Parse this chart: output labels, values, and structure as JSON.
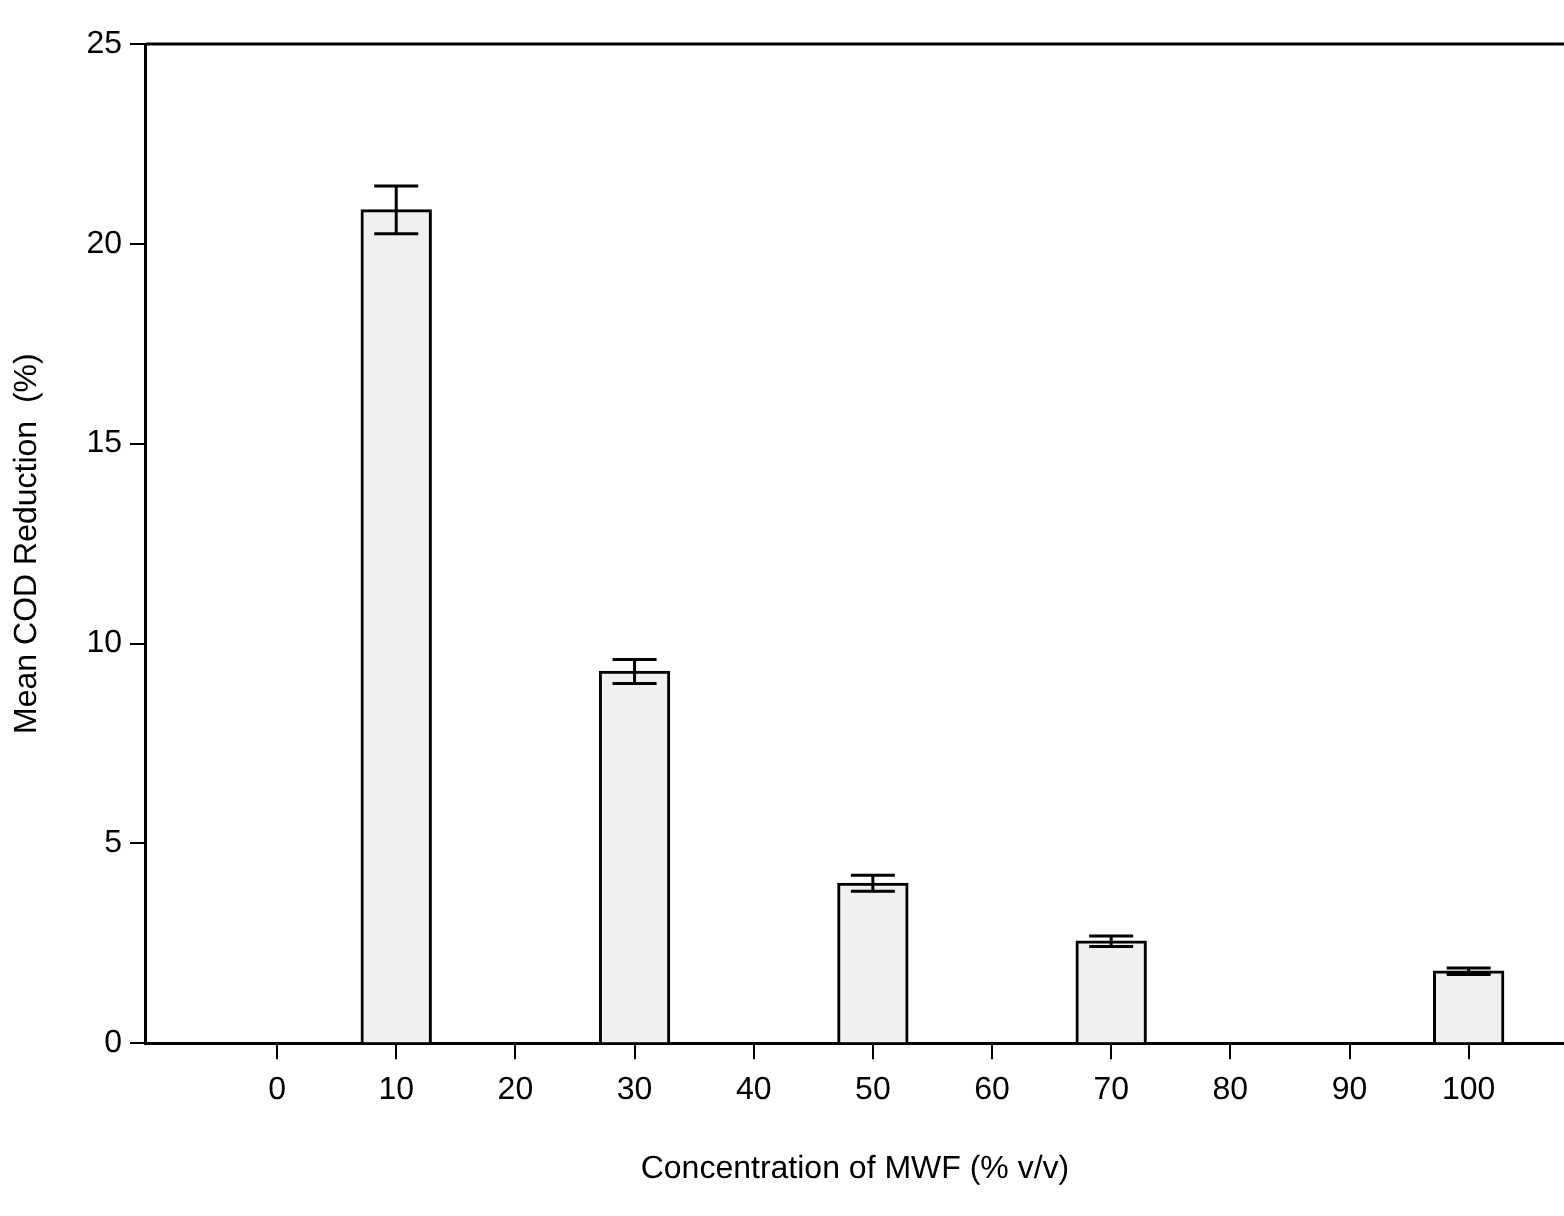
{
  "chart_data": {
    "type": "bar",
    "xlabel": "Concentration of MWF (% v/v)",
    "ylabel": "Mean COD Reduction  (%)",
    "x": [
      10,
      30,
      50,
      70,
      100
    ],
    "values": [
      20.85,
      9.3,
      4.0,
      2.55,
      1.8
    ],
    "errors": [
      0.6,
      0.3,
      0.2,
      0.13,
      0.08
    ],
    "color": "#f0f0f0",
    "xlim": [
      -11,
      108
    ],
    "xticks": [
      0,
      10,
      20,
      30,
      40,
      50,
      60,
      70,
      80,
      90,
      100
    ],
    "ylim": [
      0,
      25
    ],
    "yticks": [
      0,
      5,
      10,
      15,
      20,
      25
    ],
    "grid": false,
    "legend": false
  }
}
